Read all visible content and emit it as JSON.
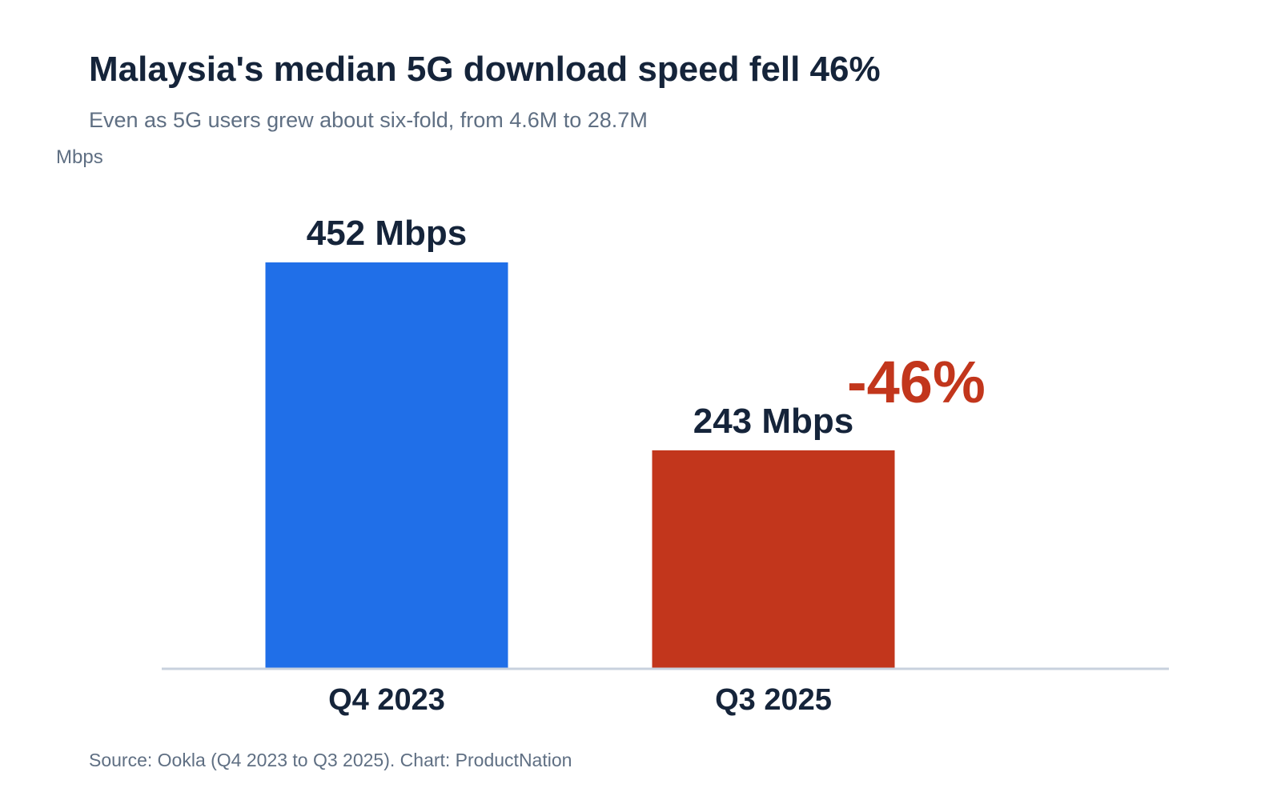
{
  "chart_data": {
    "type": "bar",
    "title": "Malaysia's median 5G download speed fell 46%",
    "subtitle": "Even as 5G users grew about six-fold, from 4.6M to 28.7M",
    "ylabel": "Mbps",
    "xlabel": "",
    "categories": [
      "Q4 2023",
      "Q3 2025"
    ],
    "values": [
      452,
      243
    ],
    "value_labels": [
      "452 Mbps",
      "243 Mbps"
    ],
    "bar_colors": [
      "#206fe8",
      "#c2361c"
    ],
    "ylim": [
      0,
      452
    ],
    "grid": false,
    "annotation": {
      "text": "-46%",
      "color": "#c2361c"
    },
    "source": "Source: Ookla (Q4 2023 to Q3 2025).  Chart: ProductNation",
    "colors": {
      "text": "#15243a",
      "muted": "#5f6f83",
      "axis": "#c8d1de"
    }
  }
}
